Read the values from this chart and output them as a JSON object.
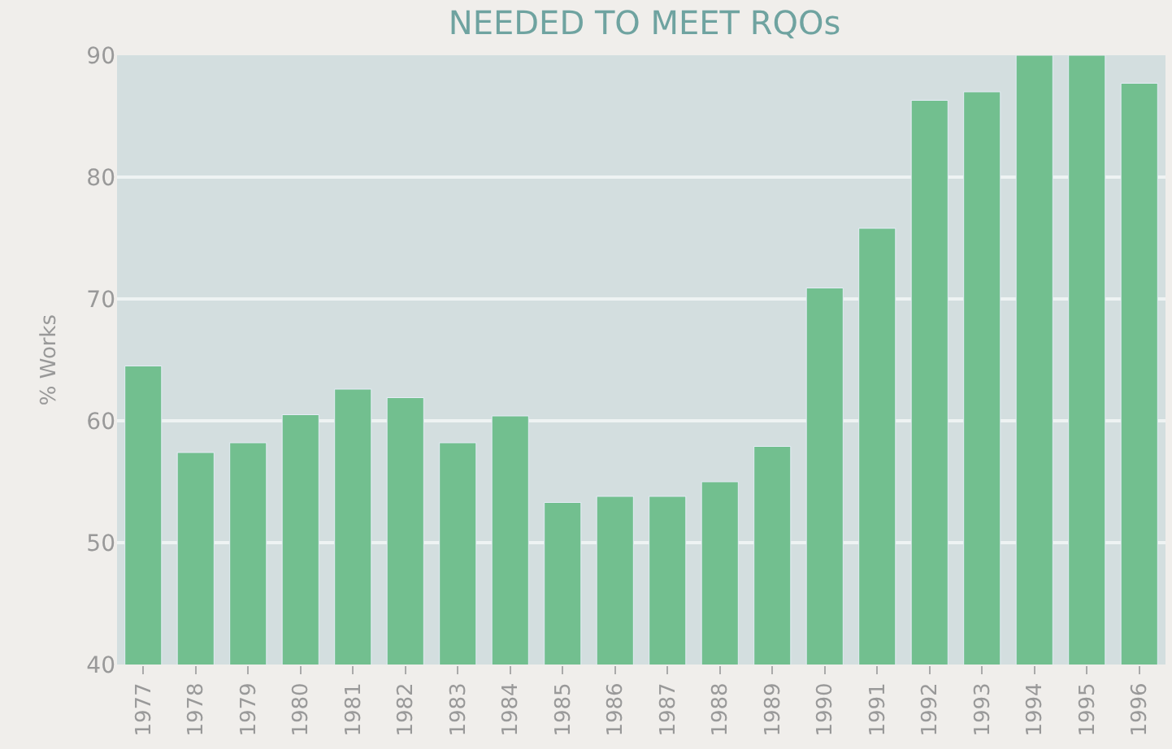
{
  "chart_data": {
    "type": "bar",
    "title": "NEEDED TO MEET RQOs",
    "ylabel": "% Works",
    "categories": [
      "1977",
      "1978",
      "1979",
      "1980",
      "1981",
      "1982",
      "1983",
      "1984",
      "1985",
      "1986",
      "1987",
      "1988",
      "1989",
      "1990",
      "1991",
      "1992",
      "1993",
      "1994",
      "1995",
      "1996"
    ],
    "values": [
      64.5,
      57.4,
      58.2,
      60.5,
      62.6,
      61.9,
      58.2,
      60.4,
      53.3,
      53.8,
      53.8,
      55,
      57.9,
      70.9,
      75.8,
      86.3,
      87,
      90,
      90,
      87.7
    ],
    "color": "#72bf8f",
    "ylim": [
      40,
      90
    ],
    "yticks": [
      40,
      50,
      60,
      70,
      80,
      90
    ],
    "grid": "y"
  }
}
